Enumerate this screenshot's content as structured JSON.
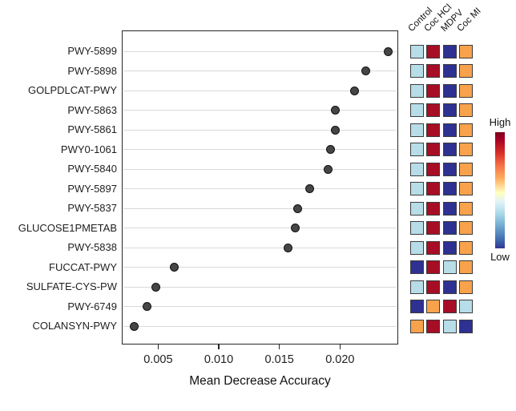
{
  "chart_data": {
    "type": "scatter",
    "title": "",
    "xlabel": "Mean Decrease Accuracy",
    "ylabel": "",
    "xlim": [
      0.002,
      0.0248
    ],
    "grid": true,
    "point_color": "#464646",
    "xticks": [
      {
        "value": 0.005,
        "label": "0.005"
      },
      {
        "value": 0.01,
        "label": "0.010"
      },
      {
        "value": 0.015,
        "label": "0.015"
      },
      {
        "value": 0.02,
        "label": "0.020"
      }
    ],
    "categories": [
      "PWY-5899",
      "PWY-5898",
      "GOLPDLCAT-PWY",
      "PWY-5863",
      "PWY-5861",
      "PWY0-1061",
      "PWY-5840",
      "PWY-5897",
      "PWY-5837",
      "GLUCOSE1PMETAB",
      "PWY-5838",
      "FUCCAT-PWY",
      "SULFATE-CYS-PW",
      "PWY-6749",
      "COLANSYN-PWY"
    ],
    "values": [
      0.024,
      0.0221,
      0.0212,
      0.0196,
      0.0196,
      0.0192,
      0.019,
      0.0175,
      0.0165,
      0.0163,
      0.0157,
      0.0063,
      0.0048,
      0.0041,
      0.003
    ],
    "heatmap": {
      "columns": [
        "Control",
        "Coc HCl",
        "MDPV",
        "Coc MI"
      ],
      "palette": {
        "LB": "#b7dde8",
        "DR": "#a80d26",
        "DB": "#2e3192",
        "OR": "#f8a24c"
      },
      "rows": [
        [
          "LB",
          "DR",
          "DB",
          "OR"
        ],
        [
          "LB",
          "DR",
          "DB",
          "OR"
        ],
        [
          "LB",
          "DR",
          "DB",
          "OR"
        ],
        [
          "LB",
          "DR",
          "DB",
          "OR"
        ],
        [
          "LB",
          "DR",
          "DB",
          "OR"
        ],
        [
          "LB",
          "DR",
          "DB",
          "OR"
        ],
        [
          "LB",
          "DR",
          "DB",
          "OR"
        ],
        [
          "LB",
          "DR",
          "DB",
          "OR"
        ],
        [
          "LB",
          "DR",
          "DB",
          "OR"
        ],
        [
          "LB",
          "DR",
          "DB",
          "OR"
        ],
        [
          "LB",
          "DR",
          "DB",
          "OR"
        ],
        [
          "DB",
          "DR",
          "LB",
          "OR"
        ],
        [
          "LB",
          "DR",
          "DB",
          "OR"
        ],
        [
          "DB",
          "OR",
          "DR",
          "LB"
        ],
        [
          "OR",
          "DR",
          "LB",
          "DB"
        ]
      ],
      "colorbar": {
        "high_label": "High",
        "low_label": "Low"
      }
    }
  }
}
